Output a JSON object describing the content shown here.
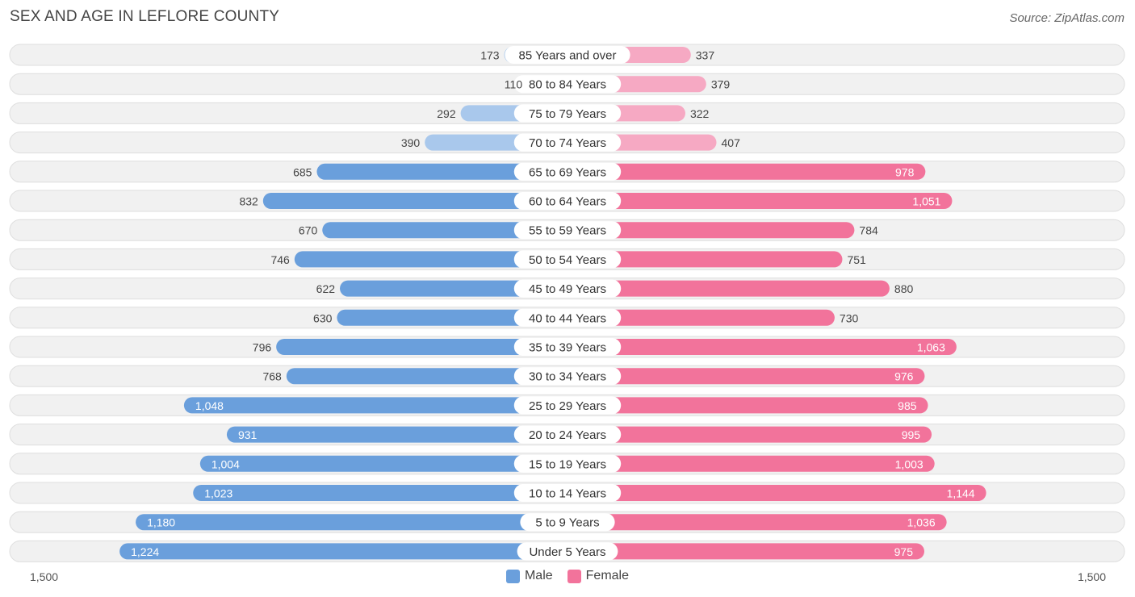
{
  "header": {
    "title": "SEX AND AGE IN LEFLORE COUNTY",
    "source": "Source: ZipAtlas.com"
  },
  "legend": {
    "male_label": "Male",
    "female_label": "Female"
  },
  "axis": {
    "left_label": "1,500",
    "right_label": "1,500"
  },
  "chart_data": {
    "type": "bar",
    "orientation": "horizontal-diverging",
    "title": "SEX AND AGE IN LEFLORE COUNTY",
    "xlim": [
      -1500,
      1500
    ],
    "legend_position": "bottom-center",
    "colors": {
      "male": "#6a9fdc",
      "male_light": "#a9c8ec",
      "female": "#f2739b",
      "female_light": "#f6a9c3",
      "row_bg": "#f1f1f1",
      "row_border": "#dedede"
    },
    "categories": [
      "85 Years and over",
      "80 to 84 Years",
      "75 to 79 Years",
      "70 to 74 Years",
      "65 to 69 Years",
      "60 to 64 Years",
      "55 to 59 Years",
      "50 to 54 Years",
      "45 to 49 Years",
      "40 to 44 Years",
      "35 to 39 Years",
      "30 to 34 Years",
      "25 to 29 Years",
      "20 to 24 Years",
      "15 to 19 Years",
      "10 to 14 Years",
      "5 to 9 Years",
      "Under 5 Years"
    ],
    "series": [
      {
        "name": "Male",
        "values": [
          173,
          110,
          292,
          390,
          685,
          832,
          670,
          746,
          622,
          630,
          796,
          768,
          1048,
          931,
          1004,
          1023,
          1180,
          1224
        ]
      },
      {
        "name": "Female",
        "values": [
          337,
          379,
          322,
          407,
          978,
          1051,
          784,
          751,
          880,
          730,
          1063,
          976,
          985,
          995,
          1003,
          1144,
          1036,
          975
        ]
      }
    ]
  }
}
